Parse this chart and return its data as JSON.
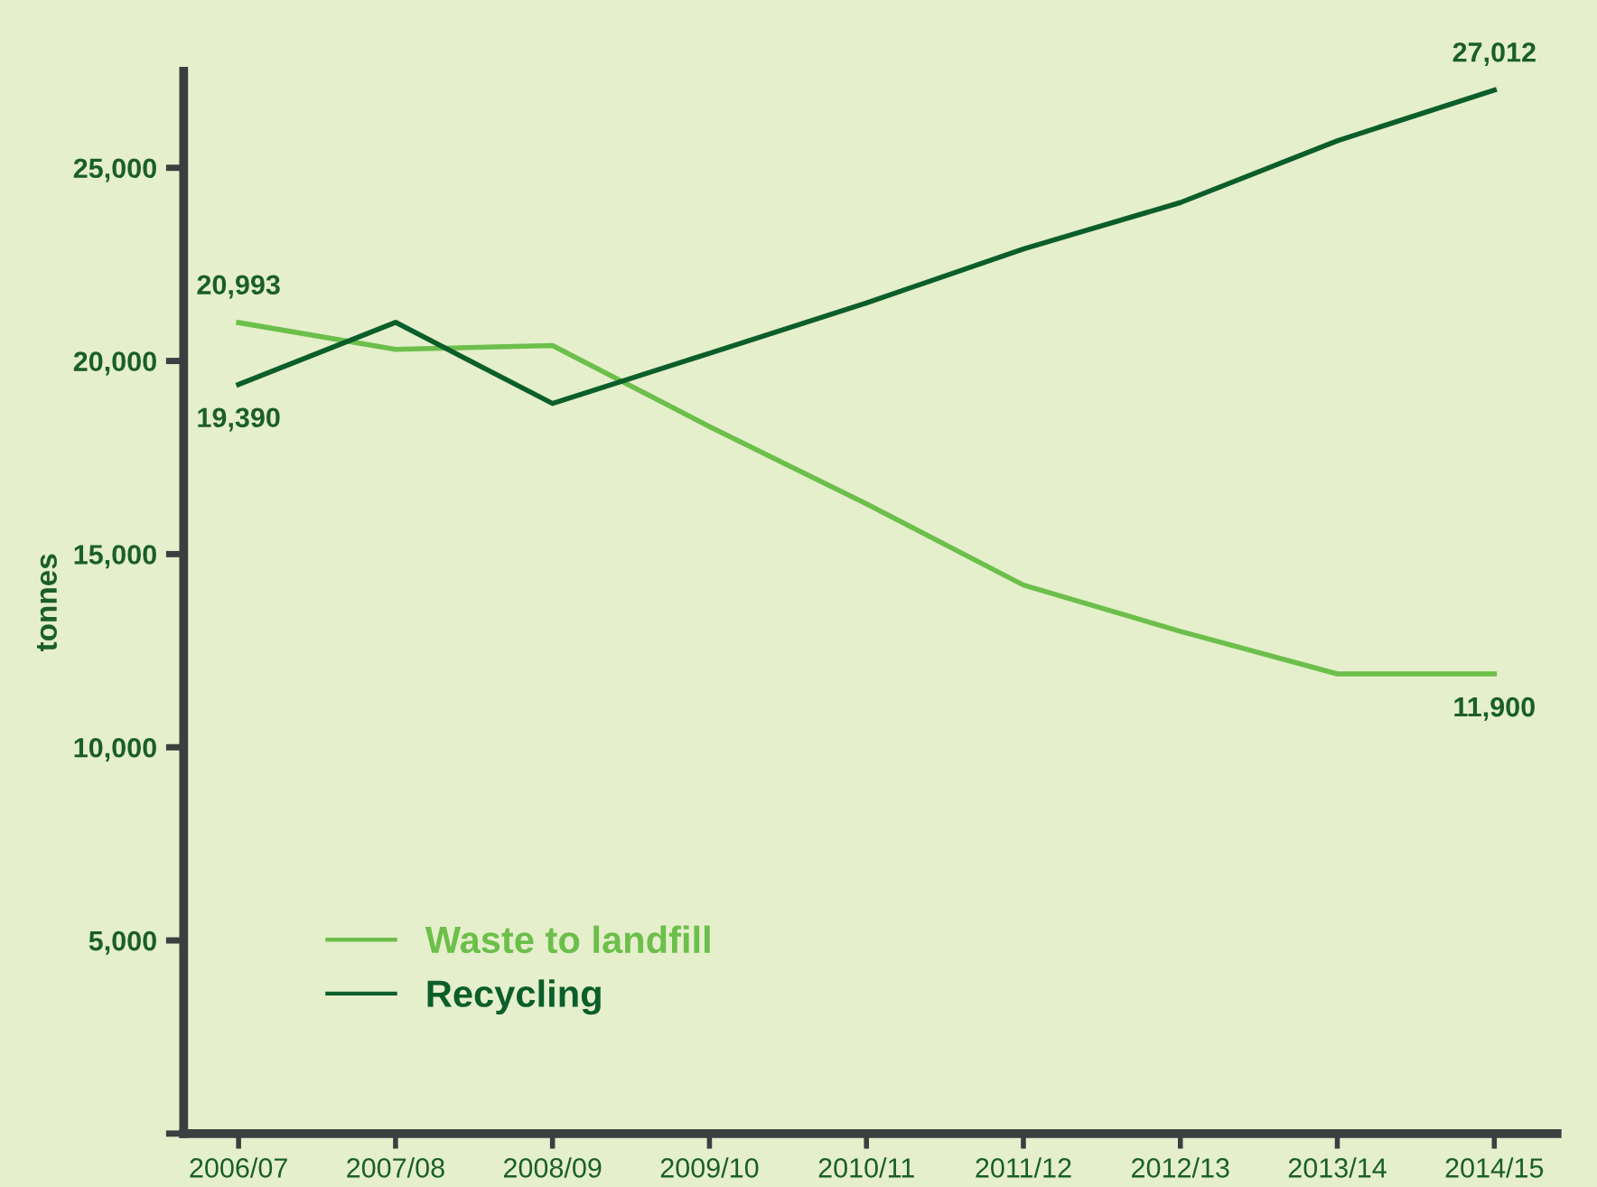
{
  "chart_data": {
    "type": "line",
    "ylabel": "tonnes",
    "categories": [
      "2006/07",
      "2007/08",
      "2008/09",
      "2009/10",
      "2010/11",
      "2011/12",
      "2012/13",
      "2013/14",
      "2014/15"
    ],
    "series": [
      {
        "name": "Waste to landfill",
        "color": "#6cbf4a",
        "values": [
          20993,
          20300,
          20400,
          18300,
          16300,
          14200,
          13000,
          11900,
          11900
        ],
        "value_labels": [
          "20,993",
          null,
          null,
          null,
          null,
          null,
          null,
          null,
          "11,900"
        ]
      },
      {
        "name": "Recycling",
        "color": "#0b5e2a",
        "values": [
          19390,
          21000,
          18900,
          20200,
          21500,
          22900,
          24100,
          25700,
          27012
        ],
        "value_labels": [
          "19,390",
          null,
          null,
          null,
          null,
          null,
          null,
          null,
          "27,012"
        ]
      }
    ],
    "ylim": [
      0,
      27500
    ],
    "yticks": [
      {
        "value": 0,
        "label": null
      },
      "5,000",
      "10,000",
      "15,000",
      "20,000",
      "25,000"
    ],
    "grid": false,
    "legend": "bottom left",
    "marker": "none",
    "line_style": "solid"
  }
}
